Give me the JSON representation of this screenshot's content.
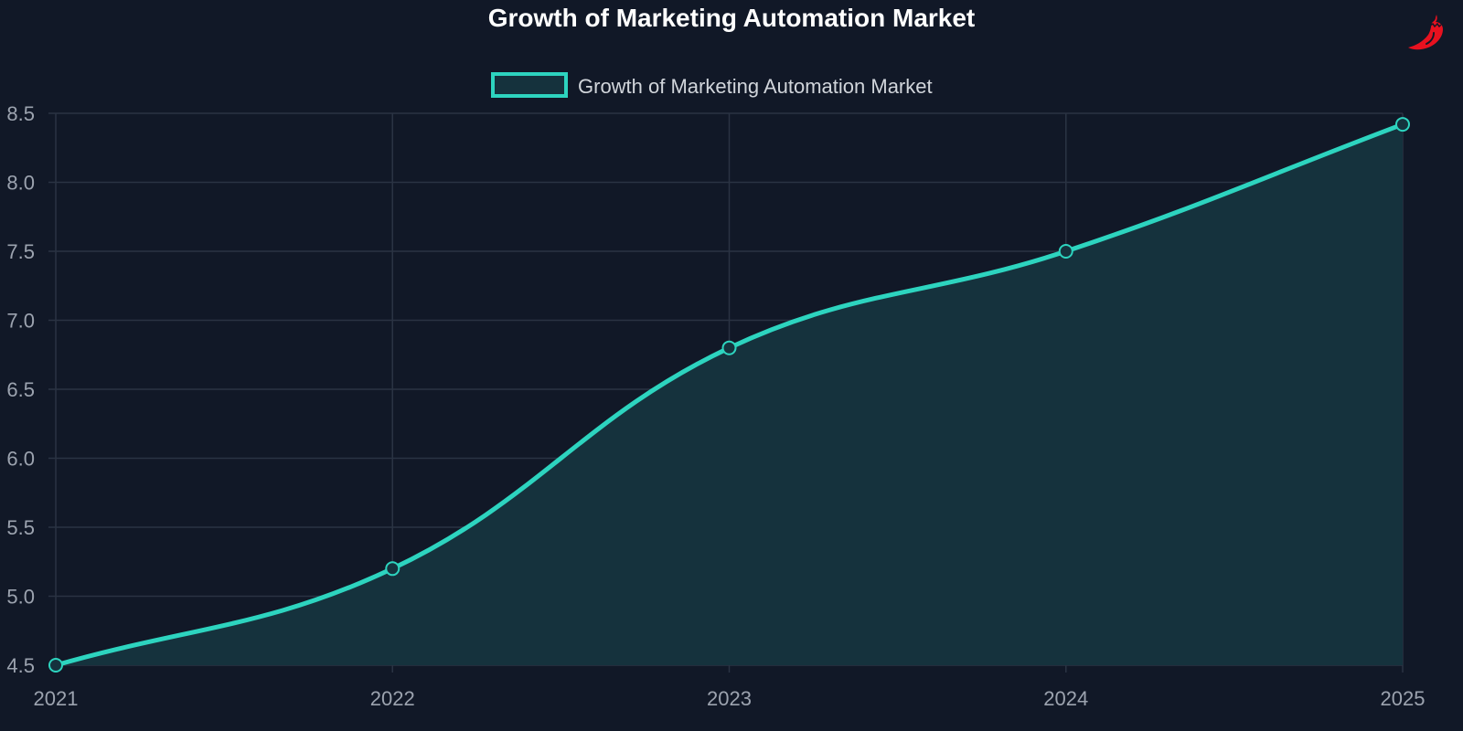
{
  "chart_data": {
    "type": "area",
    "title": "Growth of Marketing Automation Market",
    "categories": [
      "2021",
      "2022",
      "2023",
      "2024",
      "2025"
    ],
    "series": [
      {
        "name": "Growth of Marketing Automation Market",
        "values": [
          4.5,
          5.2,
          6.8,
          7.5,
          8.42
        ]
      }
    ],
    "ylim": [
      4.5,
      8.5
    ],
    "yticks": [
      "4.5",
      "5.0",
      "5.5",
      "6.0",
      "6.5",
      "7.0",
      "7.5",
      "8.0",
      "8.5"
    ],
    "xlabel": "",
    "ylabel": "",
    "grid": true,
    "legend": "top-center",
    "colors": {
      "line": "#2dd4bf",
      "fill": "#15323d",
      "background": "#111827",
      "grid": "#2a3343",
      "text": "#9ca3af"
    }
  },
  "logo": {
    "icon": "chili-pepper-icon",
    "color": "#e8111f"
  }
}
